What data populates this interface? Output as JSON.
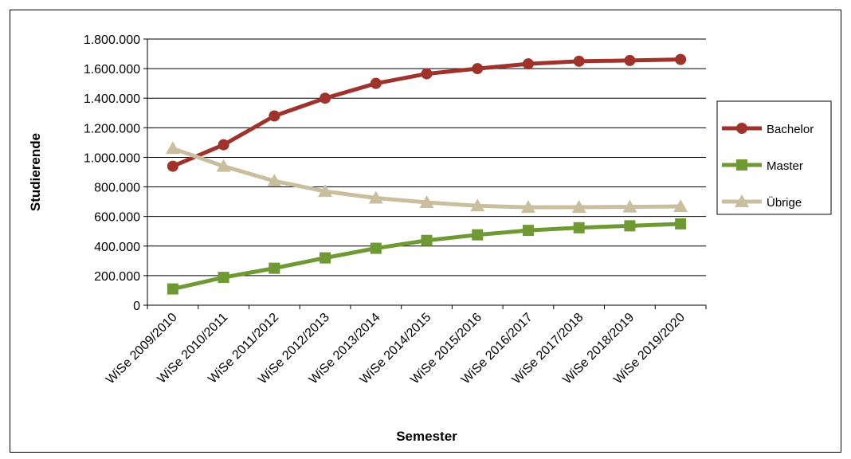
{
  "chart_data": {
    "type": "line",
    "title": "",
    "xlabel": "Semester",
    "ylabel": "Studierende",
    "ylim": [
      0,
      1800000
    ],
    "yticks": [
      "0",
      "200.000",
      "400.000",
      "600.000",
      "800.000",
      "1.000.000",
      "1.200.000",
      "1.400.000",
      "1.600.000",
      "1.800.000"
    ],
    "categories": [
      "WiSe 2009/2010",
      "WiSe 2010/2011",
      "WiSe 2011/2012",
      "WiSe 2012/2013",
      "WiSe 2013/2014",
      "WiSe 2014/2015",
      "WiSe 2015/2016",
      "WiSe 2016/2017",
      "WiSe 2017/2018",
      "WiSe 2018/2019",
      "WiSe 2019/2020"
    ],
    "series": [
      {
        "name": "Bachelor",
        "color": "#a0322c",
        "marker": "circle",
        "values": [
          940000,
          1085000,
          1280000,
          1400000,
          1500000,
          1565000,
          1600000,
          1632000,
          1650000,
          1655000,
          1662000
        ]
      },
      {
        "name": "Master",
        "color": "#6f9a33",
        "marker": "square",
        "values": [
          110000,
          188000,
          250000,
          320000,
          385000,
          438000,
          476000,
          506000,
          524000,
          537000,
          550000
        ]
      },
      {
        "name": "Übrige",
        "color": "#c9bf9e",
        "marker": "triangle",
        "values": [
          1060000,
          940000,
          840000,
          770000,
          725000,
          695000,
          672000,
          662000,
          663000,
          665000,
          668000
        ]
      }
    ],
    "grid": true,
    "legend_position": "right"
  }
}
